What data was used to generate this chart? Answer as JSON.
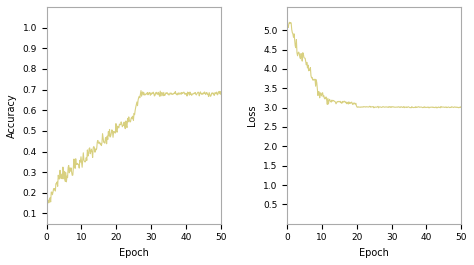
{
  "fig_width": 4.74,
  "fig_height": 2.65,
  "dpi": 100,
  "line_color": "#d8d080",
  "line_width": 0.8,
  "bg_color": "#ffffff",
  "plot_bg_color": "#ffffff",
  "acc_xlabel": "Epoch",
  "acc_ylabel": "Accuracy",
  "acc_xlim": [
    0,
    50
  ],
  "acc_ylim": [
    0.05,
    1.1
  ],
  "acc_yticks": [
    0.1,
    0.2,
    0.3,
    0.4,
    0.5,
    0.6,
    0.7,
    0.8,
    0.9,
    1.0
  ],
  "acc_xticks": [
    0,
    10,
    20,
    30,
    40,
    50
  ],
  "loss_xlabel": "Epoch",
  "loss_ylabel": "Loss",
  "loss_xlim": [
    0,
    50
  ],
  "loss_ylim": [
    0.0,
    5.6
  ],
  "loss_yticks": [
    0.5,
    1.0,
    1.5,
    2.0,
    2.5,
    3.0,
    3.5,
    4.0,
    4.5,
    5.0
  ],
  "loss_xticks": [
    0,
    10,
    20,
    30,
    40,
    50
  ]
}
